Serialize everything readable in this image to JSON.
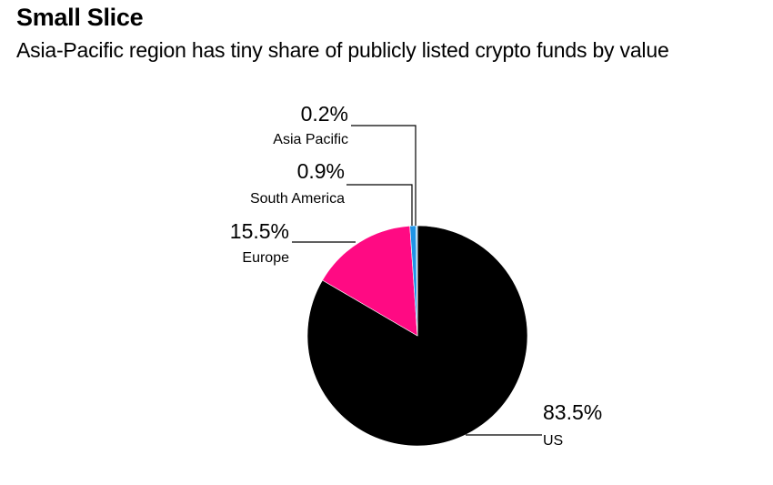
{
  "chart_data": {
    "type": "pie",
    "title": "Small Slice",
    "subtitle": "Asia-Pacific region has tiny share of publicly listed crypto funds by value",
    "slices": [
      {
        "name": "US",
        "value": 83.5,
        "label": "83.5%",
        "color": "#000000"
      },
      {
        "name": "Europe",
        "value": 15.5,
        "label": "15.5%",
        "color": "#ff0a83"
      },
      {
        "name": "South America",
        "value": 0.9,
        "label": "0.9%",
        "color": "#1f94e6"
      },
      {
        "name": "Asia Pacific",
        "value": 0.2,
        "label": "0.2%",
        "color": "#84c8f5"
      }
    ]
  }
}
